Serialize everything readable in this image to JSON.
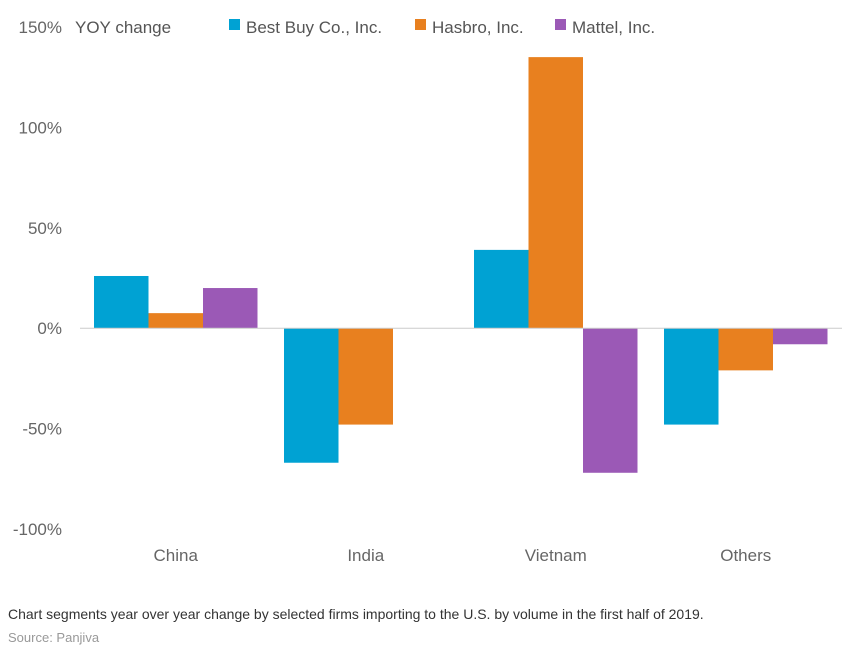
{
  "chart_data": {
    "type": "bar",
    "title": "",
    "ylabel": "YOY change",
    "xlabel": "",
    "ylim": [
      -100,
      150
    ],
    "yticks": [
      150,
      100,
      50,
      0,
      -50,
      -100
    ],
    "ytick_labels": [
      "150%",
      "100%",
      "50%",
      "0%",
      "-50%",
      "-100%"
    ],
    "categories": [
      "China",
      "India",
      "Vietnam",
      "Others"
    ],
    "series": [
      {
        "name": "Best Buy Co., Inc.",
        "color": "#00A2D3",
        "values": [
          26,
          -67,
          39,
          -48
        ]
      },
      {
        "name": "Hasbro, Inc.",
        "color": "#E8801F",
        "values": [
          7.5,
          -48,
          135,
          -21
        ]
      },
      {
        "name": "Mattel, Inc.",
        "color": "#9B59B6",
        "values": [
          20,
          null,
          -72,
          -8
        ]
      }
    ],
    "legend_position": "top",
    "grid": false
  },
  "caption": "Chart segments year over year change by selected firms importing to the U.S. by volume in the first half of 2019.",
  "source": "Source: Panjiva"
}
